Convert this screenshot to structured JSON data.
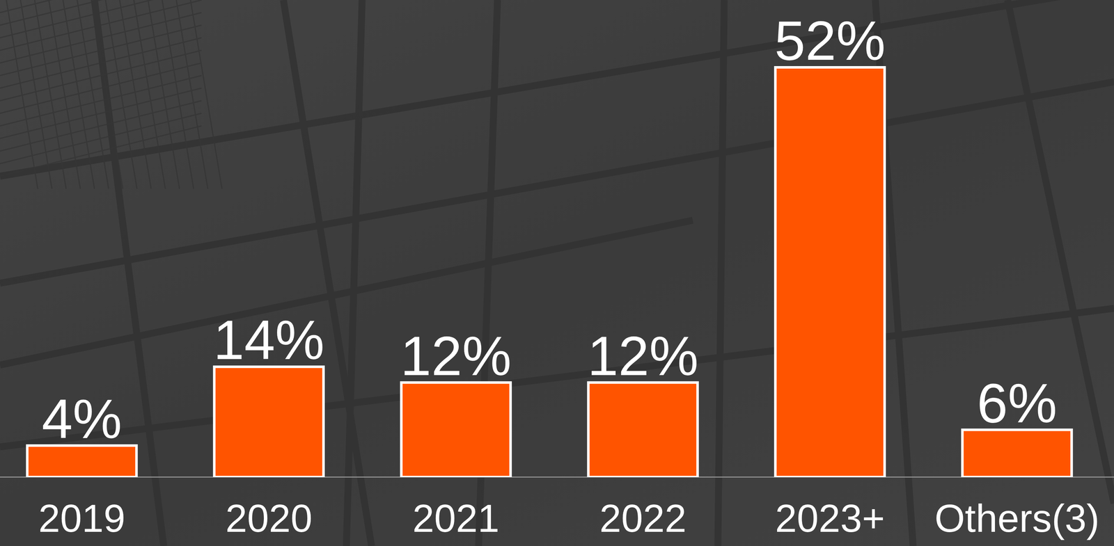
{
  "chart_data": {
    "type": "bar",
    "categories": [
      "2019",
      "2020",
      "2021",
      "2022",
      "2023+",
      "Others(3)"
    ],
    "values": [
      4,
      14,
      12,
      12,
      52,
      6
    ],
    "value_labels": [
      "4%",
      "14%",
      "12%",
      "12%",
      "52%",
      "6%"
    ],
    "color": "#ff5400",
    "ylim": [
      0,
      52
    ],
    "data_labels": true,
    "tick_labels": "x",
    "grid": false
  }
}
